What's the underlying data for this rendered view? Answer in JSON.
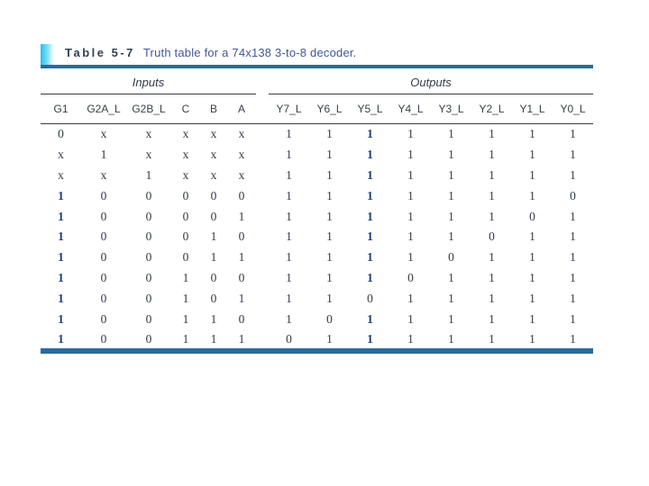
{
  "slide": {
    "background": "#ffffff",
    "accent_rule_color": "#2a6a9e",
    "bullet_icon_colors": [
      "#23c0ec",
      "#eefcff"
    ]
  },
  "title": {
    "label": "Table 5-7",
    "caption": "Truth table for a 74x138 3-to-8 decoder.",
    "label_color": "#2f4257",
    "caption_color": "#44569b"
  },
  "table": {
    "groups": [
      {
        "label": "Inputs",
        "span": 6
      },
      {
        "label": "Outputs",
        "span": 8
      }
    ],
    "columns": [
      "G1",
      "G2A_L",
      "G2B_L",
      "C",
      "B",
      "A",
      "Y7_L",
      "Y6_L",
      "Y5_L",
      "Y4_L",
      "Y3_L",
      "Y2_L",
      "Y1_L",
      "Y0_L"
    ],
    "input_column_count": 6,
    "rows": [
      [
        "0",
        "x",
        "x",
        "x",
        "x",
        "x",
        "1",
        "1",
        "1",
        "1",
        "1",
        "1",
        "1",
        "1"
      ],
      [
        "x",
        "1",
        "x",
        "x",
        "x",
        "x",
        "1",
        "1",
        "1",
        "1",
        "1",
        "1",
        "1",
        "1"
      ],
      [
        "x",
        "x",
        "1",
        "x",
        "x",
        "x",
        "1",
        "1",
        "1",
        "1",
        "1",
        "1",
        "1",
        "1"
      ],
      [
        "1",
        "0",
        "0",
        "0",
        "0",
        "0",
        "1",
        "1",
        "1",
        "1",
        "1",
        "1",
        "1",
        "0"
      ],
      [
        "1",
        "0",
        "0",
        "0",
        "0",
        "1",
        "1",
        "1",
        "1",
        "1",
        "1",
        "1",
        "0",
        "1"
      ],
      [
        "1",
        "0",
        "0",
        "0",
        "1",
        "0",
        "1",
        "1",
        "1",
        "1",
        "1",
        "0",
        "1",
        "1"
      ],
      [
        "1",
        "0",
        "0",
        "0",
        "1",
        "1",
        "1",
        "1",
        "1",
        "1",
        "0",
        "1",
        "1",
        "1"
      ],
      [
        "1",
        "0",
        "0",
        "1",
        "0",
        "0",
        "1",
        "1",
        "1",
        "0",
        "1",
        "1",
        "1",
        "1"
      ],
      [
        "1",
        "0",
        "0",
        "1",
        "0",
        "1",
        "1",
        "1",
        "0",
        "1",
        "1",
        "1",
        "1",
        "1"
      ],
      [
        "1",
        "0",
        "0",
        "1",
        "1",
        "0",
        "1",
        "0",
        "1",
        "1",
        "1",
        "1",
        "1",
        "1"
      ],
      [
        "1",
        "0",
        "0",
        "1",
        "1",
        "1",
        "0",
        "1",
        "1",
        "1",
        "1",
        "1",
        "1",
        "1"
      ]
    ],
    "emphasized_columns": [
      0,
      8
    ],
    "emphasized_value": "1",
    "emphasis_color": "#1c3f7c"
  }
}
